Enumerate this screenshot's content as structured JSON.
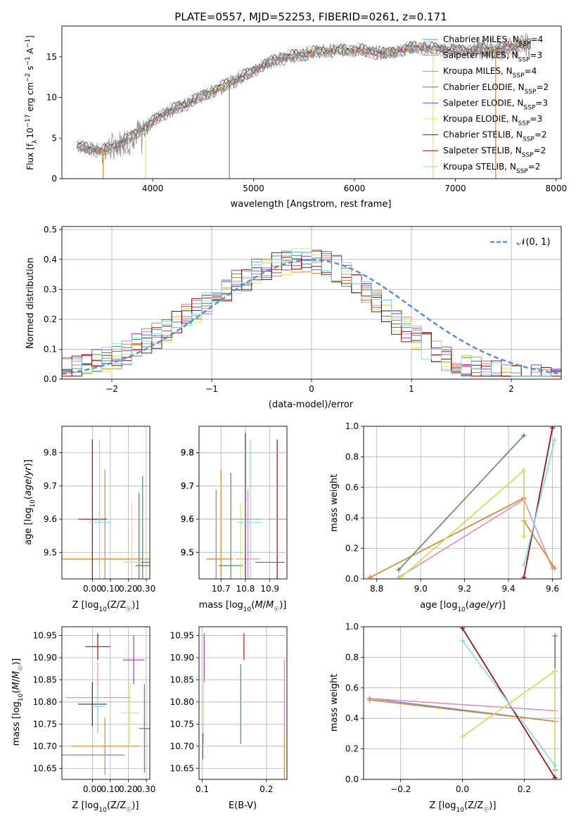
{
  "chart_data": [
    {
      "type": "line",
      "title": "PLATE=0557, MJD=52253, FIBERID=0261, z=0.171",
      "xlabel": "wavelength [Angstrom, rest frame]",
      "ylabel": "Flux [f_λ 10^-17 erg cm^-2 s^-1 A^-1]",
      "ylabel_parts": {
        "a": "Flux [f",
        "sub": "λ",
        "b": "10",
        "sup1": "−17",
        "c": " erg cm",
        "sup2": "−2",
        "d": " s",
        "sup3": "−1",
        "e": " A",
        "sup4": "−1",
        "f": "]"
      },
      "xlim": [
        3100,
        8050
      ],
      "ylim": [
        0,
        18.8
      ],
      "xticks": [
        4000,
        5000,
        6000,
        7000,
        8000
      ],
      "yticks": [
        0,
        5,
        10,
        15
      ],
      "grid": false,
      "legend_position": "top-right",
      "data_series": {
        "name": "data",
        "color": "#808080"
      },
      "model_colors": [
        "#5b7fd6",
        "#e88aba",
        "#e07b30",
        "#5a8a5a",
        "#a040c0",
        "#d8e85a",
        "#333333",
        "#a01010",
        "#80dde6"
      ],
      "legend": [
        {
          "name": "Chabrier MILES",
          "nssp": "4",
          "color": "#6b8dd6"
        },
        {
          "name": "Salpeter MILES",
          "nssp": "3",
          "color": "#e88aba"
        },
        {
          "name": "Kroupa MILES",
          "nssp": "4",
          "color": "#d88a30"
        },
        {
          "name": "Chabrier ELODIE",
          "nssp": "2",
          "color": "#5a8a5a"
        },
        {
          "name": "Salpeter ELODIE",
          "nssp": "3",
          "color": "#a040c0"
        },
        {
          "name": "Kroupa ELODIE",
          "nssp": "3",
          "color": "#d8e85a"
        },
        {
          "name": "Chabrier STELIB",
          "nssp": "2",
          "color": "#333333"
        },
        {
          "name": "Salpeter STELIB",
          "nssp": "2",
          "color": "#a01010"
        },
        {
          "name": "Kroupa STELIB",
          "nssp": "2",
          "color": "#80dde6"
        }
      ],
      "legend_suffix": {
        "prefix": ", N",
        "sub": "SSP",
        "eq": "="
      },
      "spectrum_shape": [
        [
          3250,
          4.0
        ],
        [
          3500,
          3.4
        ],
        [
          3700,
          4.5
        ],
        [
          3950,
          6.5
        ],
        [
          4100,
          8.0
        ],
        [
          4300,
          9.0
        ],
        [
          4500,
          10.2
        ],
        [
          4800,
          12.0
        ],
        [
          5200,
          14.6
        ],
        [
          5600,
          15.6
        ],
        [
          6000,
          15.9
        ],
        [
          6300,
          15.4
        ],
        [
          6600,
          16.2
        ],
        [
          7000,
          15.8
        ],
        [
          7500,
          16.0
        ],
        [
          7700,
          16.5
        ]
      ]
    },
    {
      "type": "histogram",
      "xlabel": "(data-model)/error",
      "ylabel": "Normed distribution",
      "xlim": [
        -2.5,
        2.5
      ],
      "ylim": [
        0,
        0.51
      ],
      "xticks": [
        -2,
        -1,
        0,
        1,
        2
      ],
      "yticks": [
        0.0,
        0.1,
        0.2,
        0.3,
        0.4,
        0.5
      ],
      "grid": true,
      "legend": [
        {
          "name": "𝒩(0, 1)",
          "style": "dashed",
          "color": "#5b8fd9"
        }
      ],
      "bin_edges_range": [
        -2.5,
        2.5
      ],
      "bin_count": 50,
      "hist_colors": [
        "#6b8dd6",
        "#e88aba",
        "#d88a30",
        "#5a8a5a",
        "#a040c0",
        "#d8e85a",
        "#333333",
        "#a01010",
        "#80dde6"
      ]
    },
    {
      "type": "scatter",
      "xlabel": "Z [log10(Z/Z☉)]",
      "ylabel": "age  [log10(age/yr)]",
      "xlim": [
        -0.17,
        0.32
      ],
      "ylim": [
        9.42,
        9.88
      ],
      "xticks": [
        0.0,
        0.1,
        0.2,
        0.3
      ],
      "yticks": [
        9.5,
        9.6,
        9.7,
        9.8
      ],
      "grid": true,
      "points": [
        {
          "x": -0.02,
          "y": 9.48,
          "xerr": 0.22,
          "yerr": 0.0,
          "color": "#6b8dd6"
        },
        {
          "x": 0.05,
          "y": 9.48,
          "xerr": 0.2,
          "yerr": 0.0,
          "color": "#e88aba"
        },
        {
          "x": 0.07,
          "y": 9.48,
          "xerr": 0.26,
          "yerr": 0.27,
          "color": "#d88a30"
        },
        {
          "x": 0.28,
          "y": 9.46,
          "xerr": 0.04,
          "yerr": 0.27,
          "color": "#5a8a5a"
        },
        {
          "x": 0.26,
          "y": 9.47,
          "xerr": 0.06,
          "yerr": 0.21,
          "color": "#a040c0"
        },
        {
          "x": 0.22,
          "y": 9.47,
          "xerr": 0.05,
          "yerr": 0.18,
          "color": "#d8e85a"
        },
        {
          "x": 0.0,
          "y": 9.6,
          "xerr": 0.05,
          "yerr": 0.0,
          "color": "#333333"
        },
        {
          "x": 0.0,
          "y": 9.6,
          "xerr": 0.08,
          "yerr": 0.24,
          "color": "#a01010"
        },
        {
          "x": 0.04,
          "y": 9.59,
          "xerr": 0.06,
          "yerr": 0.25,
          "color": "#80dde6"
        }
      ]
    },
    {
      "type": "scatter",
      "xlabel": "mass [log10(M/M☉)]",
      "ylabel": "",
      "xlim": [
        10.61,
        10.97
      ],
      "ylim": [
        9.42,
        9.88
      ],
      "xticks": [
        10.7,
        10.8,
        10.9
      ],
      "yticks": [
        9.5,
        9.6,
        9.7,
        9.8
      ],
      "grid": true,
      "points": [
        {
          "x": 10.68,
          "y": 9.48,
          "xerr": 0.04,
          "yerr": 0.21,
          "color": "#6b8dd6"
        },
        {
          "x": 10.81,
          "y": 9.48,
          "xerr": 0.05,
          "yerr": 0.21,
          "color": "#e88aba"
        },
        {
          "x": 10.7,
          "y": 9.48,
          "xerr": 0.05,
          "yerr": 0.27,
          "color": "#d88a30"
        },
        {
          "x": 10.74,
          "y": 9.46,
          "xerr": 0.05,
          "yerr": 0.28,
          "color": "#5a8a5a"
        },
        {
          "x": 10.9,
          "y": 9.47,
          "xerr": 0.06,
          "yerr": 0.0,
          "color": "#a040c0"
        },
        {
          "x": 10.78,
          "y": 9.47,
          "xerr": 0.0,
          "yerr": 0.18,
          "color": "#d8e85a"
        },
        {
          "x": 10.8,
          "y": 9.6,
          "xerr": 0.06,
          "yerr": 0.26,
          "color": "#333333"
        },
        {
          "x": 10.93,
          "y": 9.6,
          "xerr": 0.04,
          "yerr": 0.24,
          "color": "#a01010"
        },
        {
          "x": 10.82,
          "y": 9.59,
          "xerr": 0.05,
          "yerr": 0.25,
          "color": "#80dde6"
        }
      ]
    },
    {
      "type": "line",
      "xlabel": "age  [log10(age/yr)]",
      "ylabel": "mass weight",
      "xlim": [
        8.74,
        9.64
      ],
      "ylim": [
        0.0,
        1.0
      ],
      "xticks": [
        8.8,
        9.0,
        9.2,
        9.4,
        9.6
      ],
      "yticks": [
        0.0,
        0.2,
        0.4,
        0.6,
        0.8,
        1.0
      ],
      "grid": true,
      "series": [
        {
          "name": "Chabrier MILES",
          "color": "#6b8dd6",
          "x": [
            8.77,
            9.47,
            9.47,
            9.61
          ],
          "y": [
            0.01,
            0.53,
            0.38,
            0.07
          ]
        },
        {
          "name": "Salpeter MILES",
          "color": "#e88aba",
          "x": [
            8.9,
            9.47,
            9.6
          ],
          "y": [
            0.01,
            0.52,
            0.07
          ]
        },
        {
          "name": "Kroupa MILES",
          "color": "#d88a30",
          "x": [
            8.77,
            9.47,
            9.47,
            9.61
          ],
          "y": [
            0.01,
            0.53,
            0.38,
            0.07
          ]
        },
        {
          "name": "Chabrier ELODIE",
          "color": "#5a8a5a",
          "x": [
            8.9,
            9.47
          ],
          "y": [
            0.06,
            0.94
          ]
        },
        {
          "name": "Salpeter ELODIE",
          "color": "#a040c0",
          "x": [
            8.91,
            9.47,
            9.47
          ],
          "y": [
            0.01,
            0.71,
            0.28
          ]
        },
        {
          "name": "Kroupa ELODIE",
          "color": "#d8e85a",
          "x": [
            8.91,
            9.47,
            9.47
          ],
          "y": [
            0.01,
            0.71,
            0.28
          ]
        },
        {
          "name": "Chabrier STELIB",
          "color": "#333333",
          "x": [
            9.47,
            9.6
          ],
          "y": [
            0.01,
            0.99
          ]
        },
        {
          "name": "Salpeter STELIB",
          "color": "#a01010",
          "x": [
            9.47,
            9.6
          ],
          "y": [
            0.01,
            0.99
          ]
        },
        {
          "name": "Kroupa STELIB",
          "color": "#80dde6",
          "x": [
            9.47,
            9.61
          ],
          "y": [
            0.09,
            0.91
          ]
        }
      ]
    },
    {
      "type": "scatter",
      "xlabel": "Z [log10(Z/Z☉)]",
      "ylabel": "mass [log10(M/M☉)]",
      "xlim": [
        -0.17,
        0.32
      ],
      "ylim": [
        10.625,
        10.97
      ],
      "xticks": [
        0.0,
        0.1,
        0.2,
        0.3
      ],
      "yticks": [
        10.65,
        10.7,
        10.75,
        10.8,
        10.85,
        10.9,
        10.95
      ],
      "grid": true,
      "points": [
        {
          "x": 0.0,
          "y": 10.68,
          "xerr": 0.18,
          "yerr": 0.0,
          "color": "#6b8dd6"
        },
        {
          "x": 0.03,
          "y": 10.81,
          "xerr": 0.18,
          "yerr": 0.08,
          "color": "#e88aba"
        },
        {
          "x": 0.07,
          "y": 10.7,
          "xerr": 0.19,
          "yerr": 0.065,
          "color": "#d88a30"
        },
        {
          "x": 0.29,
          "y": 10.74,
          "xerr": 0.03,
          "yerr": 0.1,
          "color": "#5a8a5a"
        },
        {
          "x": 0.23,
          "y": 10.895,
          "xerr": 0.06,
          "yerr": 0.055,
          "color": "#a040c0"
        },
        {
          "x": 0.21,
          "y": 10.775,
          "xerr": 0.05,
          "yerr": 0.07,
          "color": "#d8e85a"
        },
        {
          "x": 0.0,
          "y": 10.795,
          "xerr": 0.08,
          "yerr": 0.05,
          "color": "#333333"
        },
        {
          "x": 0.03,
          "y": 10.925,
          "xerr": 0.07,
          "yerr": 0.03,
          "color": "#a01010"
        },
        {
          "x": 0.03,
          "y": 10.79,
          "xerr": 0.04,
          "yerr": 0.045,
          "color": "#80dde6"
        }
      ]
    },
    {
      "type": "scatter",
      "xlabel": "E(B-V)",
      "ylabel": "",
      "xlim": [
        0.095,
        0.232
      ],
      "ylim": [
        10.625,
        10.97
      ],
      "xticks": [
        0.1,
        0.2
      ],
      "grid": true,
      "points": [
        {
          "x": 0.228,
          "y": 10.7,
          "xerr": 0.0,
          "yerr": 0.09,
          "color": "#d88a30"
        },
        {
          "x": 0.228,
          "y": 10.81,
          "xerr": 0.0,
          "yerr": 0.085,
          "color": "#e88aba"
        },
        {
          "x": 0.103,
          "y": 10.9,
          "xerr": 0.0,
          "yerr": 0.055,
          "color": "#a040c0"
        },
        {
          "x": 0.102,
          "y": 10.775,
          "xerr": 0.0,
          "yerr": 0.07,
          "color": "#d8e85a"
        },
        {
          "x": 0.165,
          "y": 10.925,
          "xerr": 0.0,
          "yerr": 0.03,
          "color": "#a01010"
        },
        {
          "x": 0.16,
          "y": 10.795,
          "xerr": 0.0,
          "yerr": 0.09,
          "color": "#5a8a5a"
        },
        {
          "x": 0.101,
          "y": 10.7,
          "xerr": 0.0,
          "yerr": 0.03,
          "color": "#5a8a5a"
        }
      ]
    },
    {
      "type": "line",
      "xlabel": "Z [log10(Z/Z☉)]",
      "ylabel": "mass weight",
      "xlim": [
        -0.32,
        0.32
      ],
      "ylim": [
        0.0,
        1.0
      ],
      "xticks": [
        -0.2,
        0.0,
        0.2
      ],
      "yticks": [
        0.0,
        0.2,
        0.4,
        0.6,
        0.8,
        1.0
      ],
      "grid": true,
      "series": [
        {
          "name": "Chabrier MILES",
          "color": "#6b8dd6",
          "x": [
            -0.3,
            0.3
          ],
          "y": [
            0.53,
            0.38
          ]
        },
        {
          "name": "Salpeter MILES",
          "color": "#e88aba",
          "x": [
            -0.3,
            0.3
          ],
          "y": [
            0.53,
            0.45
          ]
        },
        {
          "name": "Kroupa MILES",
          "color": "#d88a30",
          "x": [
            -0.3,
            0.3
          ],
          "y": [
            0.52,
            0.38
          ]
        },
        {
          "name": "Chabrier ELODIE",
          "color": "#5a8a5a",
          "x": [
            0.3,
            0.3
          ],
          "y": [
            0.94,
            0.06
          ]
        },
        {
          "name": "Salpeter ELODIE",
          "color": "#a040c0",
          "x": [
            0.0,
            0.3,
            0.3
          ],
          "y": [
            0.28,
            0.71,
            0.01
          ]
        },
        {
          "name": "Kroupa ELODIE",
          "color": "#d8e85a",
          "x": [
            0.0,
            0.3,
            0.3
          ],
          "y": [
            0.28,
            0.71,
            0.01
          ]
        },
        {
          "name": "Chabrier STELIB",
          "color": "#333333",
          "x": [
            0.0,
            0.3
          ],
          "y": [
            0.99,
            0.01
          ]
        },
        {
          "name": "Salpeter STELIB",
          "color": "#a01010",
          "x": [
            0.0,
            0.3
          ],
          "y": [
            0.99,
            0.01
          ]
        },
        {
          "name": "Kroupa STELIB",
          "color": "#80dde6",
          "x": [
            0.0,
            0.3
          ],
          "y": [
            0.91,
            0.09
          ]
        }
      ]
    }
  ]
}
